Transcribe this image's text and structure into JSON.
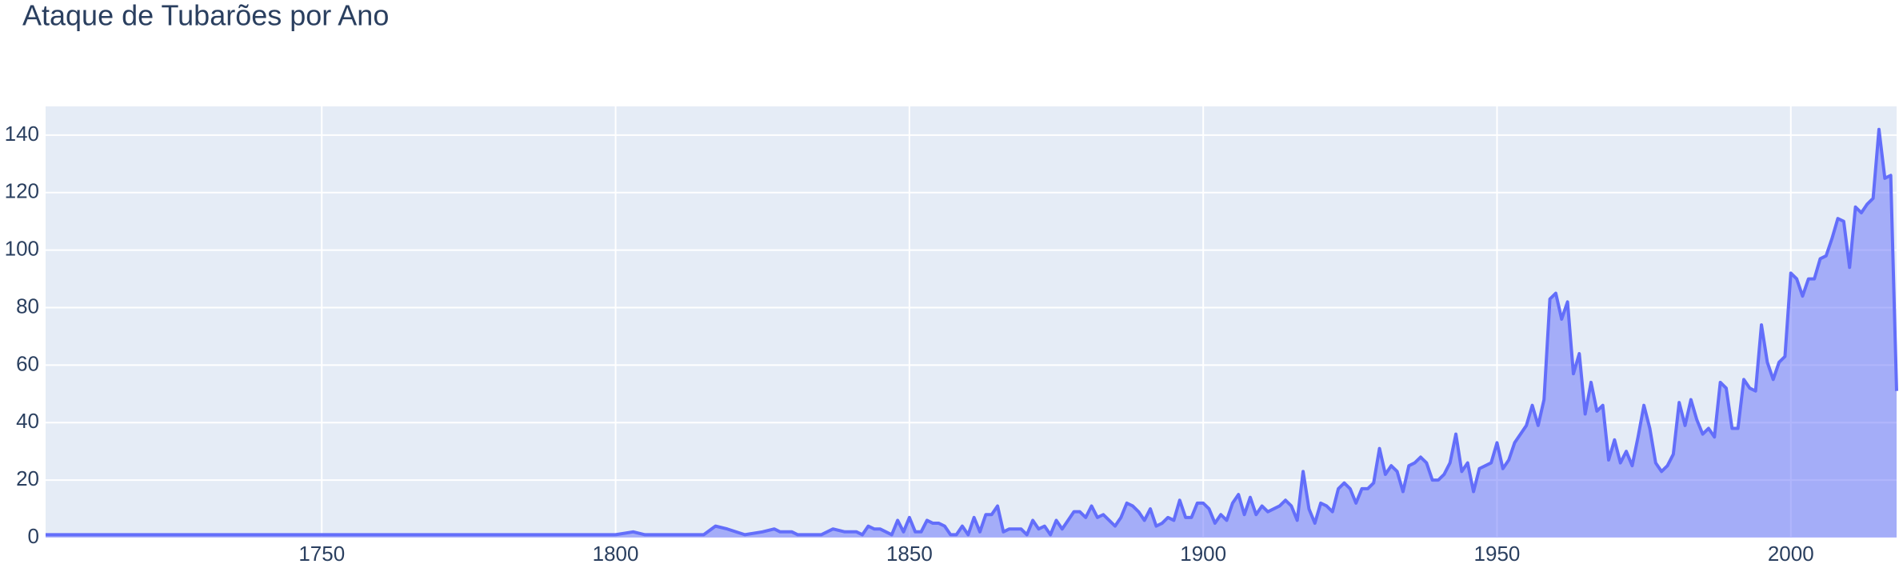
{
  "chart_data": {
    "type": "area",
    "title": "Ataque de Tubarões por Ano",
    "x": [
      1703,
      1800,
      1803,
      1805,
      1815,
      1817,
      1819,
      1822,
      1825,
      1827,
      1828,
      1830,
      1831,
      1835,
      1837,
      1839,
      1841,
      1842,
      1843,
      1844,
      1845,
      1846,
      1847,
      1848,
      1849,
      1850,
      1851,
      1852,
      1853,
      1854,
      1855,
      1856,
      1857,
      1858,
      1859,
      1860,
      1861,
      1862,
      1863,
      1864,
      1865,
      1866,
      1867,
      1868,
      1869,
      1870,
      1871,
      1872,
      1873,
      1874,
      1875,
      1876,
      1877,
      1878,
      1879,
      1880,
      1881,
      1882,
      1883,
      1884,
      1885,
      1886,
      1887,
      1888,
      1889,
      1890,
      1891,
      1892,
      1893,
      1894,
      1895,
      1896,
      1897,
      1898,
      1899,
      1900,
      1901,
      1902,
      1903,
      1904,
      1905,
      1906,
      1907,
      1908,
      1909,
      1910,
      1911,
      1912,
      1913,
      1914,
      1915,
      1916,
      1917,
      1918,
      1919,
      1920,
      1921,
      1922,
      1923,
      1924,
      1925,
      1926,
      1927,
      1928,
      1929,
      1930,
      1931,
      1932,
      1933,
      1934,
      1935,
      1936,
      1937,
      1938,
      1939,
      1940,
      1941,
      1942,
      1943,
      1944,
      1945,
      1946,
      1947,
      1948,
      1949,
      1950,
      1951,
      1952,
      1953,
      1954,
      1955,
      1956,
      1957,
      1958,
      1959,
      1960,
      1961,
      1962,
      1963,
      1964,
      1965,
      1966,
      1967,
      1968,
      1969,
      1970,
      1971,
      1972,
      1973,
      1974,
      1975,
      1976,
      1977,
      1978,
      1979,
      1980,
      1981,
      1982,
      1983,
      1984,
      1985,
      1986,
      1987,
      1988,
      1989,
      1990,
      1991,
      1992,
      1993,
      1994,
      1995,
      1996,
      1997,
      1998,
      1999,
      2000,
      2001,
      2002,
      2003,
      2004,
      2005,
      2006,
      2007,
      2008,
      2009,
      2010,
      2011,
      2012,
      2013,
      2014,
      2015,
      2016,
      2017,
      2018
    ],
    "values": [
      1,
      1,
      2,
      1,
      1,
      4,
      3,
      1,
      2,
      3,
      2,
      2,
      1,
      1,
      3,
      2,
      2,
      1,
      4,
      3,
      3,
      2,
      1,
      6,
      2,
      7,
      2,
      2,
      6,
      5,
      5,
      4,
      1,
      1,
      4,
      1,
      7,
      2,
      8,
      8,
      11,
      2,
      3,
      3,
      3,
      1,
      6,
      3,
      4,
      1,
      6,
      3,
      6,
      9,
      9,
      7,
      11,
      7,
      8,
      6,
      4,
      7,
      12,
      11,
      9,
      6,
      10,
      4,
      5,
      7,
      6,
      13,
      7,
      7,
      12,
      12,
      10,
      5,
      8,
      6,
      12,
      15,
      8,
      14,
      8,
      11,
      9,
      10,
      11,
      13,
      11,
      6,
      23,
      10,
      5,
      12,
      11,
      9,
      17,
      19,
      17,
      12,
      17,
      17,
      19,
      31,
      22,
      25,
      23,
      16,
      25,
      26,
      28,
      26,
      20,
      20,
      22,
      26,
      36,
      23,
      26,
      16,
      24,
      25,
      26,
      33,
      24,
      27,
      33,
      36,
      39,
      46,
      39,
      48,
      83,
      85,
      76,
      82,
      57,
      64,
      43,
      54,
      44,
      46,
      27,
      34,
      26,
      30,
      25,
      35,
      46,
      38,
      26,
      23,
      25,
      29,
      47,
      39,
      48,
      41,
      36,
      38,
      35,
      54,
      52,
      38,
      38,
      55,
      52,
      51,
      74,
      61,
      55,
      61,
      63,
      92,
      90,
      84,
      90,
      90,
      97,
      98,
      104,
      111,
      110,
      94,
      115,
      113,
      116,
      118,
      142,
      125,
      126,
      51
    ],
    "color": "#636efa",
    "xlim": [
      1703,
      2018
    ],
    "ylim": [
      0,
      150
    ],
    "xticks": [
      1750,
      1800,
      1850,
      1900,
      1950,
      2000
    ],
    "yticks": [
      0,
      20,
      40,
      60,
      80,
      100,
      120,
      140
    ],
    "grid": true
  }
}
